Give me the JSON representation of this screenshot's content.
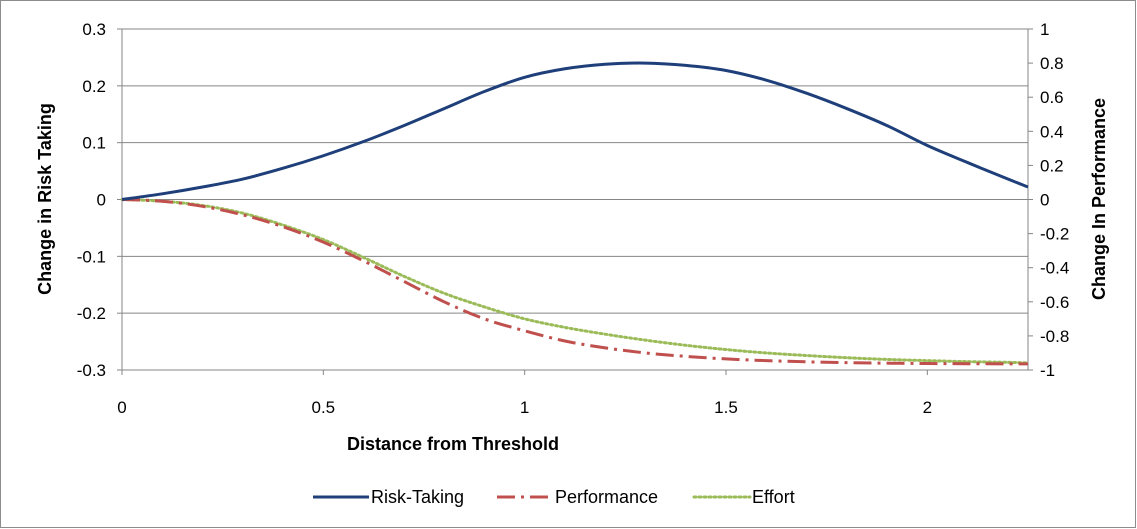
{
  "chart_data": {
    "type": "line",
    "title": "",
    "xlabel": "Distance from Threshold",
    "ylabel": "Change in Risk Taking",
    "y2label": "Change In Performance",
    "xlim": [
      0,
      2.25
    ],
    "ylim": [
      -0.3,
      0.3
    ],
    "y2lim": [
      -1,
      1
    ],
    "xticks": [
      "0",
      "0.5",
      "1",
      "1.5",
      "2"
    ],
    "yticks": [
      "0.3",
      "0.2",
      "0.1",
      "0",
      "-0.1",
      "-0.2",
      "-0.3"
    ],
    "y2ticks": [
      "1",
      "0.8",
      "0.6",
      "0.4",
      "0.2",
      "0",
      "-0.2",
      "-0.4",
      "-0.6",
      "-0.8",
      "-1"
    ],
    "grid": "horizontal",
    "legend_position": "bottom",
    "x": [
      0,
      0.1,
      0.2,
      0.3,
      0.4,
      0.5,
      0.6,
      0.7,
      0.8,
      0.9,
      1.0,
      1.1,
      1.2,
      1.3,
      1.4,
      1.5,
      1.6,
      1.7,
      1.8,
      1.9,
      2.0,
      2.1,
      2.2,
      2.25
    ],
    "series": [
      {
        "name": "Risk-Taking",
        "axis": "left",
        "color": "#1f3f7a",
        "dash": "solid",
        "values": [
          0.0,
          0.01,
          0.022,
          0.036,
          0.055,
          0.077,
          0.102,
          0.13,
          0.16,
          0.19,
          0.215,
          0.23,
          0.238,
          0.24,
          0.236,
          0.227,
          0.21,
          0.187,
          0.16,
          0.13,
          0.095,
          0.065,
          0.036,
          0.022
        ]
      },
      {
        "name": "Performance",
        "axis": "right",
        "color": "#c0504d",
        "dash": "dashdot",
        "values": [
          0.0,
          -0.01,
          -0.04,
          -0.09,
          -0.16,
          -0.25,
          -0.36,
          -0.48,
          -0.6,
          -0.7,
          -0.77,
          -0.83,
          -0.87,
          -0.9,
          -0.92,
          -0.935,
          -0.945,
          -0.952,
          -0.957,
          -0.96,
          -0.962,
          -0.963,
          -0.964,
          -0.964
        ]
      },
      {
        "name": "Effort",
        "axis": "right",
        "color": "#9bbb59",
        "dash": "dotted",
        "values": [
          0.0,
          -0.01,
          -0.035,
          -0.08,
          -0.15,
          -0.235,
          -0.34,
          -0.45,
          -0.55,
          -0.63,
          -0.7,
          -0.75,
          -0.79,
          -0.825,
          -0.855,
          -0.88,
          -0.9,
          -0.915,
          -0.928,
          -0.938,
          -0.945,
          -0.951,
          -0.955,
          -0.958
        ]
      }
    ]
  }
}
